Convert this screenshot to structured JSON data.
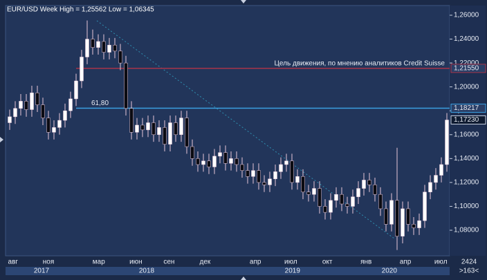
{
  "chart_data": {
    "type": "candlestick",
    "title": "EUR/USD Week High = 1,25562 Low = 1,06345",
    "annotation": "Цель движения, по мнению аналитиков Credit Suisse",
    "xlim": [
      0,
      80
    ],
    "ylim": [
      1.0586,
      1.2681
    ],
    "yticks": [
      {
        "value": 1.08,
        "label": "1,08000"
      },
      {
        "value": 1.1,
        "label": "1,10000"
      },
      {
        "value": 1.12,
        "label": "1,12000"
      },
      {
        "value": 1.14,
        "label": "1,14000"
      },
      {
        "value": 1.16,
        "label": "1,16000"
      },
      {
        "value": 1.18,
        "label": "1,18000"
      },
      {
        "value": 1.2,
        "label": "1,20000"
      },
      {
        "value": 1.22,
        "label": "1,22000"
      },
      {
        "value": 1.24,
        "label": "1,24000"
      },
      {
        "value": 1.26,
        "label": "1,26000"
      }
    ],
    "xticks": [
      {
        "value": 1.1,
        "label": "авг"
      },
      {
        "value": 7.5,
        "label": "ноя"
      },
      {
        "value": 16.6,
        "label": "мар"
      },
      {
        "value": 23.3,
        "label": "июн"
      },
      {
        "value": 29.3,
        "label": "сен"
      },
      {
        "value": 35.8,
        "label": "дек"
      },
      {
        "value": 44.9,
        "label": "апр"
      },
      {
        "value": 51.3,
        "label": "июл"
      },
      {
        "value": 57.9,
        "label": "окт"
      },
      {
        "value": 64.9,
        "label": "янв"
      },
      {
        "value": 72,
        "label": "апр"
      },
      {
        "value": 78.4,
        "label": "июл"
      }
    ],
    "years": [
      {
        "value": 6.25,
        "label": "2017"
      },
      {
        "value": 25.25,
        "label": "2018"
      },
      {
        "value": 51.6,
        "label": "2019"
      },
      {
        "value": 69.1,
        "label": "2020"
      }
    ],
    "corner": [
      "2424",
      ">163<"
    ],
    "levels": [
      {
        "value": 1.2155,
        "label": "1,21550",
        "color": "#a8344a"
      },
      {
        "value": 1.18217,
        "label": "1,18217",
        "color": "#3a9fe0",
        "name": "61,80"
      }
    ],
    "last": {
      "value": 1.1723,
      "label": "1,17230"
    },
    "up_color": "#ffffff",
    "down_color": "#0b0b12",
    "wick_color": "#e8c8d8",
    "open": [
      1.17,
      1.175,
      1.182,
      1.188,
      1.181,
      1.195,
      1.185,
      1.174,
      1.162,
      1.166,
      1.172,
      1.18,
      1.19,
      1.205,
      1.225,
      1.24,
      1.233,
      1.238,
      1.229,
      1.235,
      1.23,
      1.22,
      1.182,
      1.162,
      1.168,
      1.164,
      1.17,
      1.16,
      1.166,
      1.152,
      1.17,
      1.16,
      1.174,
      1.15,
      1.14,
      1.135,
      1.138,
      1.133,
      1.142,
      1.145,
      1.136,
      1.14,
      1.135,
      1.13,
      1.125,
      1.13,
      1.12,
      1.118,
      1.123,
      1.129,
      1.135,
      1.138,
      1.12,
      1.125,
      1.112,
      1.11,
      1.115,
      1.1,
      1.095,
      1.105,
      1.11,
      1.102,
      1.1,
      1.108,
      1.115,
      1.122,
      1.118,
      1.11,
      1.098,
      1.085,
      1.105,
      1.075,
      1.098,
      1.085,
      1.082,
      1.088,
      1.112,
      1.12,
      1.126,
      1.135
    ],
    "high": [
      1.181,
      1.188,
      1.194,
      1.194,
      1.201,
      1.201,
      1.191,
      1.18,
      1.172,
      1.178,
      1.186,
      1.196,
      1.211,
      1.231,
      1.25562,
      1.248,
      1.244,
      1.244,
      1.241,
      1.241,
      1.236,
      1.226,
      1.188,
      1.174,
      1.174,
      1.176,
      1.176,
      1.172,
      1.172,
      1.176,
      1.176,
      1.18,
      1.18,
      1.156,
      1.146,
      1.144,
      1.144,
      1.148,
      1.151,
      1.151,
      1.146,
      1.146,
      1.141,
      1.136,
      1.136,
      1.136,
      1.126,
      1.129,
      1.135,
      1.141,
      1.144,
      1.144,
      1.131,
      1.131,
      1.118,
      1.121,
      1.121,
      1.106,
      1.111,
      1.116,
      1.116,
      1.108,
      1.114,
      1.121,
      1.128,
      1.128,
      1.124,
      1.116,
      1.104,
      1.111,
      1.149,
      1.104,
      1.104,
      1.091,
      1.094,
      1.118,
      1.126,
      1.132,
      1.141,
      1.1781
    ],
    "low": [
      1.164,
      1.169,
      1.176,
      1.175,
      1.175,
      1.179,
      1.168,
      1.156,
      1.156,
      1.16,
      1.166,
      1.174,
      1.184,
      1.199,
      1.219,
      1.227,
      1.227,
      1.223,
      1.223,
      1.224,
      1.214,
      1.176,
      1.156,
      1.156,
      1.158,
      1.158,
      1.154,
      1.154,
      1.146,
      1.146,
      1.154,
      1.154,
      1.144,
      1.134,
      1.129,
      1.129,
      1.127,
      1.127,
      1.136,
      1.13,
      1.13,
      1.129,
      1.124,
      1.119,
      1.119,
      1.114,
      1.112,
      1.112,
      1.117,
      1.123,
      1.129,
      1.114,
      1.114,
      1.106,
      1.104,
      1.104,
      1.094,
      1.089,
      1.089,
      1.099,
      1.096,
      1.094,
      1.094,
      1.102,
      1.109,
      1.112,
      1.104,
      1.092,
      1.079,
      1.079,
      1.06345,
      1.069,
      1.079,
      1.076,
      1.076,
      1.082,
      1.106,
      1.114,
      1.12,
      1.129
    ],
    "close": [
      1.175,
      1.182,
      1.188,
      1.181,
      1.195,
      1.185,
      1.174,
      1.162,
      1.166,
      1.172,
      1.18,
      1.19,
      1.205,
      1.225,
      1.24,
      1.233,
      1.238,
      1.229,
      1.235,
      1.23,
      1.22,
      1.182,
      1.162,
      1.168,
      1.164,
      1.17,
      1.16,
      1.166,
      1.152,
      1.17,
      1.16,
      1.174,
      1.15,
      1.14,
      1.135,
      1.138,
      1.133,
      1.142,
      1.145,
      1.136,
      1.14,
      1.135,
      1.13,
      1.125,
      1.13,
      1.12,
      1.118,
      1.123,
      1.129,
      1.135,
      1.138,
      1.12,
      1.125,
      1.112,
      1.11,
      1.115,
      1.1,
      1.095,
      1.105,
      1.11,
      1.102,
      1.1,
      1.108,
      1.115,
      1.122,
      1.118,
      1.11,
      1.098,
      1.085,
      1.105,
      1.075,
      1.098,
      1.085,
      1.082,
      1.088,
      1.112,
      1.12,
      1.126,
      1.135,
      1.1723
    ]
  }
}
